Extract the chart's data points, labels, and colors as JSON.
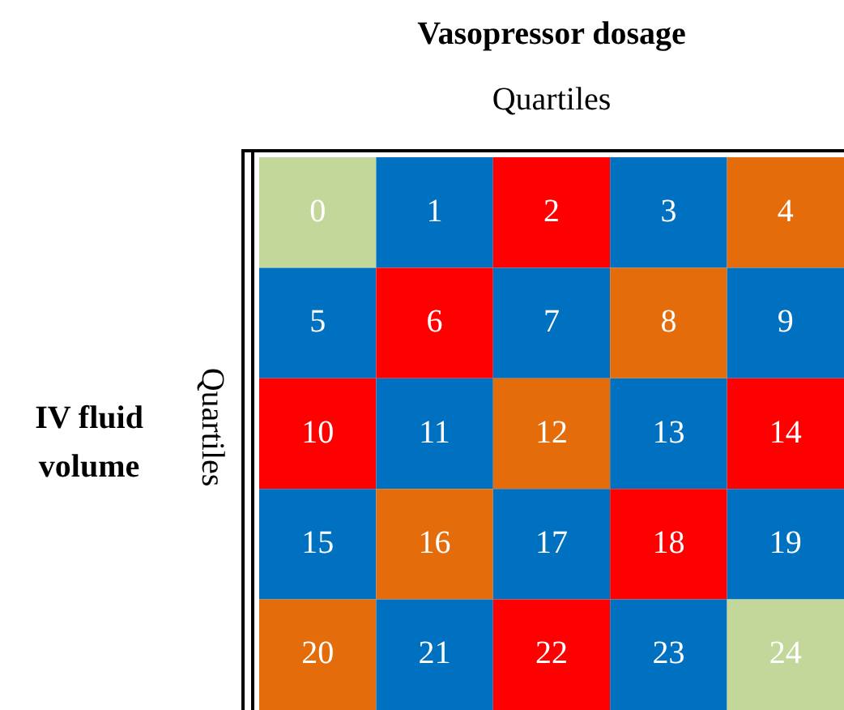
{
  "chart_data": {
    "type": "heatmap",
    "title": "Vasopressor dosage",
    "xlabel": "Quartiles",
    "ylabel": "Quartiles",
    "annotations": [
      "IV fluid volume"
    ],
    "categories": [
      null,
      null,
      null,
      null,
      null
    ],
    "y_categories": [
      null,
      null,
      null,
      null,
      null
    ],
    "cells": [
      [
        0,
        1,
        2,
        3,
        4
      ],
      [
        5,
        6,
        7,
        8,
        9
      ],
      [
        10,
        11,
        12,
        13,
        14
      ],
      [
        15,
        16,
        17,
        18,
        19
      ],
      [
        20,
        21,
        22,
        23,
        24
      ]
    ],
    "colors": [
      [
        "#c4d79b",
        "#0070c0",
        "#ff0000",
        "#0070c0",
        "#e46c0a"
      ],
      [
        "#0070c0",
        "#ff0000",
        "#0070c0",
        "#e46c0a",
        "#0070c0"
      ],
      [
        "#ff0000",
        "#0070c0",
        "#e46c0a",
        "#0070c0",
        "#ff0000"
      ],
      [
        "#0070c0",
        "#e46c0a",
        "#0070c0",
        "#ff0000",
        "#0070c0"
      ],
      [
        "#e46c0a",
        "#0070c0",
        "#ff0000",
        "#0070c0",
        "#c4d79b"
      ]
    ],
    "data_labels": true
  }
}
